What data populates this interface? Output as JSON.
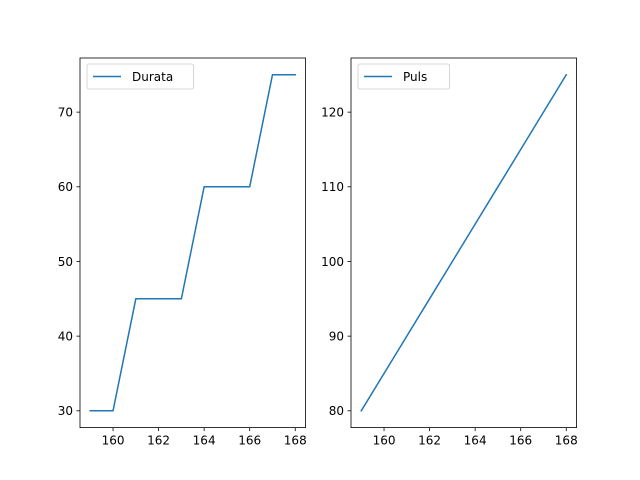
{
  "chart_data": [
    {
      "type": "line",
      "x": [
        159,
        160,
        161,
        162,
        163,
        164,
        165,
        166,
        167,
        168
      ],
      "series": [
        {
          "name": "Durata",
          "values": [
            30,
            30,
            45,
            45,
            45,
            60,
            60,
            60,
            75,
            75
          ],
          "color": "#1f77b4"
        }
      ],
      "xlim": [
        158.55,
        168.45
      ],
      "ylim": [
        27.75,
        77.25
      ],
      "xticks": [
        160,
        162,
        164,
        166,
        168
      ],
      "yticks": [
        30,
        40,
        50,
        60,
        70
      ],
      "legend": "upper-left",
      "grid": false
    },
    {
      "type": "line",
      "x": [
        159,
        160,
        161,
        162,
        163,
        164,
        165,
        166,
        167,
        168
      ],
      "series": [
        {
          "name": "Puls",
          "values": [
            80,
            85,
            90,
            95,
            100,
            105,
            110,
            115,
            120,
            125
          ],
          "color": "#1f77b4"
        }
      ],
      "xlim": [
        158.55,
        168.45
      ],
      "ylim": [
        77.75,
        127.25
      ],
      "xticks": [
        160,
        162,
        164,
        166,
        168
      ],
      "yticks": [
        80,
        90,
        100,
        110,
        120
      ],
      "legend": "upper-left",
      "grid": false
    }
  ]
}
